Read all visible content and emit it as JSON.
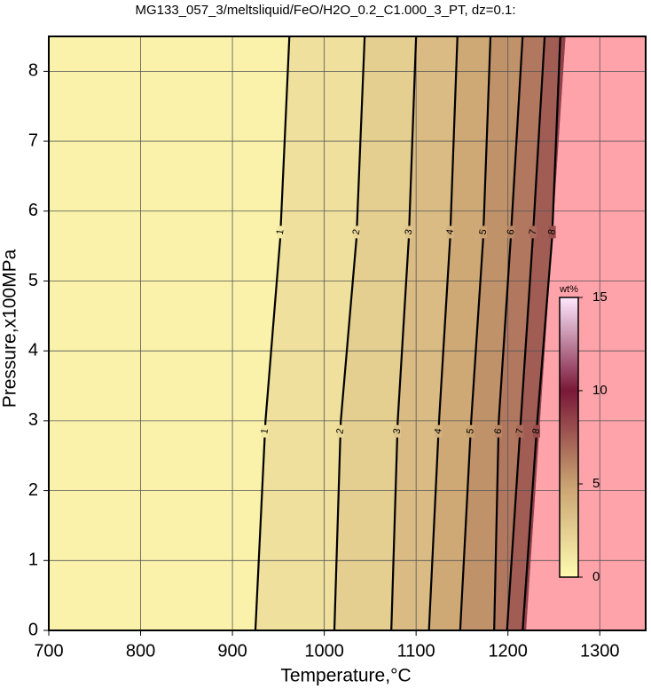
{
  "chart_data": {
    "type": "contour",
    "title": "MG133_057_3/meltsliquid/FeO/H2O_0.2_C1.000_3_PT, dz=0.1:",
    "x_label": "Temperature,°C",
    "y_label": "Pressure,x100MPa",
    "xlim": [
      700,
      1350
    ],
    "ylim": [
      0,
      8.5
    ],
    "xticks": [
      700,
      800,
      900,
      1000,
      1100,
      1200,
      1300
    ],
    "yticks": [
      0,
      1,
      2,
      3,
      4,
      5,
      6,
      7,
      8
    ],
    "grid": true,
    "contours": [
      {
        "level": 1,
        "x": [
          925,
          936,
          952,
          962
        ],
        "y": [
          0,
          3,
          5.6,
          8.5
        ]
      },
      {
        "level": 2,
        "x": [
          1011,
          1018,
          1035,
          1044
        ],
        "y": [
          0,
          3,
          5.6,
          8.5
        ]
      },
      {
        "level": 3,
        "x": [
          1073,
          1080,
          1092,
          1100
        ],
        "y": [
          0,
          3,
          5.6,
          8.5
        ]
      },
      {
        "level": 4,
        "x": [
          1114,
          1125,
          1137,
          1145
        ],
        "y": [
          0,
          3,
          5.6,
          8.5
        ]
      },
      {
        "level": 5,
        "x": [
          1148,
          1160,
          1173,
          1181
        ],
        "y": [
          0,
          3,
          5.6,
          8.5
        ]
      },
      {
        "level": 6,
        "x": [
          1185,
          1190,
          1203,
          1216
        ],
        "y": [
          0,
          3,
          5.6,
          8.5
        ]
      },
      {
        "level": 7,
        "x": [
          1199,
          1214,
          1227,
          1240
        ],
        "y": [
          0,
          3,
          5.6,
          8.5
        ]
      },
      {
        "level": 8,
        "x": [
          1216,
          1232,
          1248,
          1257
        ],
        "y": [
          0,
          3,
          5.6,
          8.5
        ]
      }
    ],
    "label_pressures": [
      2.85,
      5.7
    ],
    "boundary": {
      "x": [
        1220,
        1263
      ],
      "y": [
        0,
        8.5
      ]
    },
    "saturated_color": "#ffa3aa",
    "colorbar": {
      "label": "wt%",
      "lim": [
        0,
        15
      ],
      "ticks": [
        0,
        5,
        10,
        15
      ],
      "stops": [
        {
          "value": 0,
          "color": "#fffbb0"
        },
        {
          "value": 5,
          "color": "#c8a070"
        },
        {
          "value": 10,
          "color": "#7a1838"
        },
        {
          "value": 15,
          "color": "#ffe8ff"
        }
      ]
    }
  }
}
